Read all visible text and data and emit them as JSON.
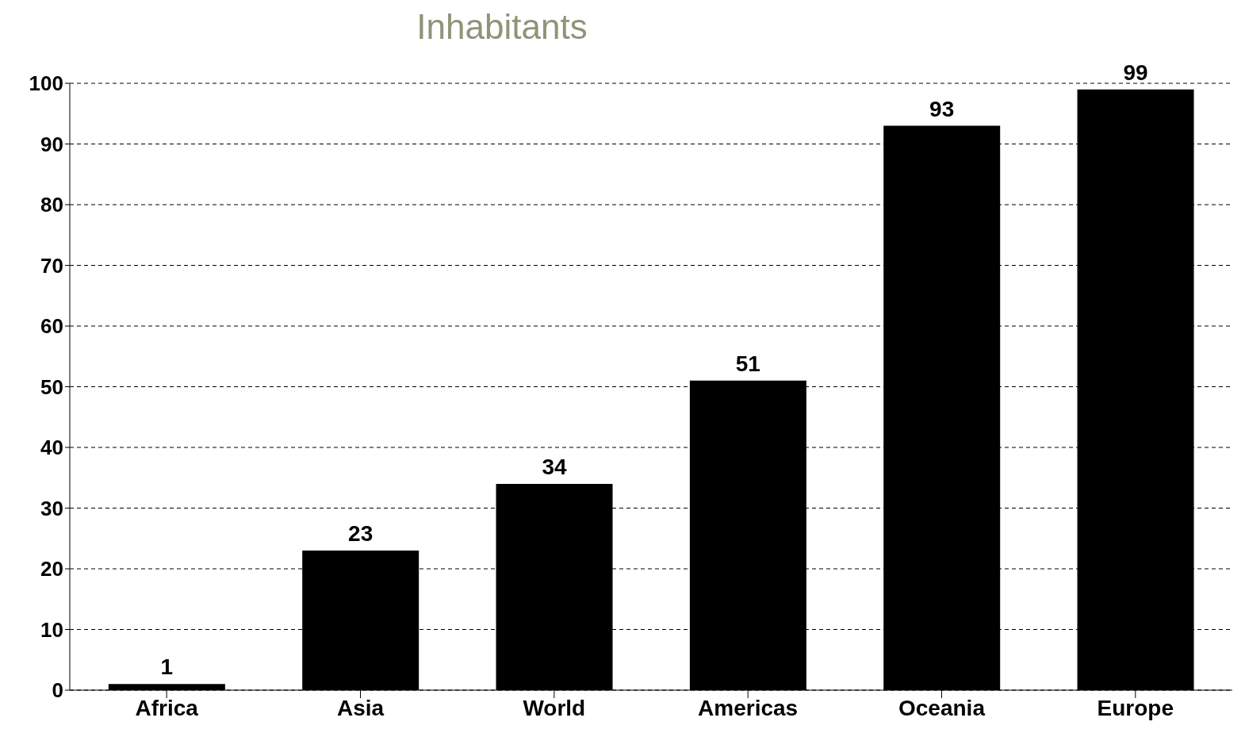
{
  "chart_data": {
    "type": "bar",
    "title": "Inhabitants",
    "categories": [
      "Africa",
      "Asia",
      "World",
      "Americas",
      "Oceania",
      "Europe"
    ],
    "values": [
      1,
      23,
      34,
      51,
      93,
      99
    ],
    "color": "#000000",
    "ylim": [
      0,
      100
    ],
    "yticks": [
      0,
      10,
      20,
      30,
      40,
      50,
      60,
      70,
      80,
      90,
      100
    ],
    "grid": "y",
    "data_labels": true
  }
}
